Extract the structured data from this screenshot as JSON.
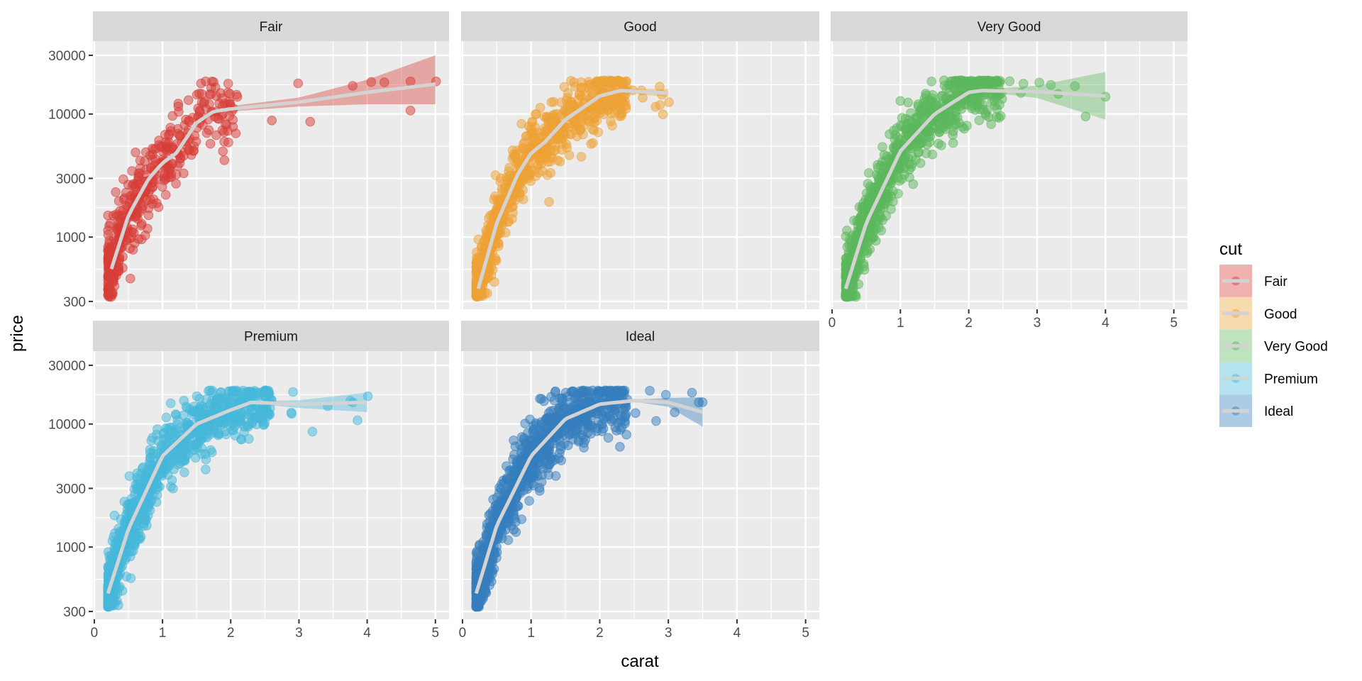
{
  "chart_data": {
    "type": "scatter",
    "title": "",
    "xlabel": "carat",
    "ylabel": "price",
    "xlim": [
      -0.02,
      5.2
    ],
    "ylim": [
      259,
      39100
    ],
    "yscale": "log10",
    "x_ticks": [
      "0",
      "1",
      "2",
      "3",
      "4",
      "5"
    ],
    "x_tick_values": [
      0,
      1,
      2,
      3,
      4,
      5
    ],
    "y_ticks": [
      "300",
      "1000",
      "3000",
      "10000",
      "30000"
    ],
    "y_tick_values": [
      300,
      1000,
      3000,
      10000,
      30000
    ],
    "grid": true,
    "legend": {
      "title": "cut",
      "placement": "right",
      "entries": [
        "Fair",
        "Good",
        "Very Good",
        "Premium",
        "Ideal"
      ]
    },
    "smooth_color": "#d3d3d3",
    "facets": [
      {
        "name": "Fair",
        "color": "#d73e38",
        "n_points": 450,
        "x_dense": 2.1,
        "x_max": 5.01,
        "noise": 0.16,
        "smooth": {
          "x": [
            0.25,
            0.5,
            0.8,
            1.0,
            1.2,
            1.5,
            1.75,
            2.0,
            3.0,
            4.0,
            5.0
          ],
          "y": [
            550,
            1500,
            3000,
            4000,
            4800,
            8500,
            10500,
            11000,
            12500,
            15000,
            17500
          ],
          "lo": [
            480,
            1400,
            2850,
            3850,
            4600,
            8100,
            10000,
            10500,
            11500,
            12000,
            12000
          ],
          "hi": [
            630,
            1600,
            3150,
            4150,
            5000,
            8900,
            11000,
            11600,
            13600,
            19000,
            30000
          ]
        }
      },
      {
        "name": "Good",
        "color": "#eea236",
        "n_points": 900,
        "x_dense": 2.4,
        "x_max": 3.01,
        "noise": 0.13,
        "smooth": {
          "x": [
            0.23,
            0.5,
            0.8,
            1.0,
            1.2,
            1.5,
            2.0,
            2.3,
            3.0
          ],
          "y": [
            380,
            1300,
            3200,
            4800,
            5900,
            9000,
            14000,
            15500,
            14800
          ],
          "lo": [
            360,
            1270,
            3150,
            4750,
            5850,
            8900,
            13700,
            15000,
            13700
          ],
          "hi": [
            400,
            1330,
            3250,
            4850,
            5950,
            9100,
            14300,
            16000,
            16000
          ]
        }
      },
      {
        "name": "Very Good",
        "color": "#5cb85c",
        "n_points": 1000,
        "x_dense": 2.5,
        "x_max": 4.0,
        "noise": 0.13,
        "smooth": {
          "x": [
            0.2,
            0.5,
            1.0,
            1.5,
            2.0,
            2.2,
            3.0,
            4.0
          ],
          "y": [
            380,
            1300,
            5000,
            10000,
            15000,
            15500,
            15200,
            14000
          ],
          "lo": [
            360,
            1270,
            4950,
            9900,
            14700,
            15200,
            13500,
            9000
          ],
          "hi": [
            400,
            1330,
            5050,
            10100,
            15300,
            15800,
            17000,
            22000
          ]
        }
      },
      {
        "name": "Premium",
        "color": "#46b8da",
        "n_points": 1000,
        "x_dense": 2.6,
        "x_max": 4.01,
        "noise": 0.13,
        "smooth": {
          "x": [
            0.2,
            0.5,
            1.0,
            1.5,
            2.0,
            2.3,
            3.0,
            4.0
          ],
          "y": [
            420,
            1400,
            5500,
            10000,
            13000,
            15000,
            14500,
            15000
          ],
          "lo": [
            400,
            1370,
            5450,
            9900,
            12800,
            14700,
            13500,
            12500
          ],
          "hi": [
            440,
            1430,
            5550,
            10100,
            13200,
            15300,
            15600,
            18000
          ]
        }
      },
      {
        "name": "Ideal",
        "color": "#357ebd",
        "n_points": 1100,
        "x_dense": 2.4,
        "x_max": 3.5,
        "noise": 0.13,
        "smooth": {
          "x": [
            0.2,
            0.5,
            1.0,
            1.5,
            2.0,
            2.5,
            3.0,
            3.5
          ],
          "y": [
            420,
            1500,
            5500,
            11000,
            14500,
            15500,
            15000,
            12500
          ],
          "lo": [
            400,
            1470,
            5450,
            10900,
            14300,
            15200,
            13800,
            9500
          ],
          "hi": [
            440,
            1530,
            5550,
            11100,
            14700,
            15800,
            16300,
            16500
          ]
        }
      }
    ]
  }
}
